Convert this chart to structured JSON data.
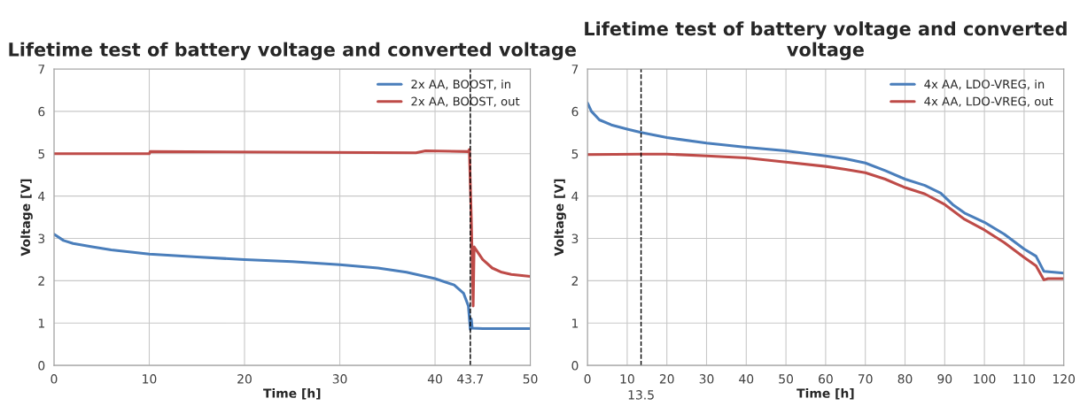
{
  "chart_data": [
    {
      "type": "line",
      "title": "Lifetime test of battery voltage and converted voltage",
      "xlabel": "Time [h]",
      "ylabel": "Voltage [V]",
      "xlim": [
        0,
        50
      ],
      "ylim": [
        0,
        7
      ],
      "xticks": [
        0,
        10,
        20,
        30,
        40,
        {
          "value": 43.7,
          "label": "43.7"
        },
        50
      ],
      "yticks": [
        0,
        1,
        2,
        3,
        4,
        5,
        6,
        7
      ],
      "grid": true,
      "legend": "top right",
      "ref_lines": [
        {
          "axis": "x",
          "value": 43.7,
          "label": null,
          "color": "#000000",
          "line_style": "dashed"
        }
      ],
      "series": [
        {
          "name": "2x AA, BOOST, in",
          "color": "#4a7ebb",
          "x": [
            0,
            1,
            2,
            4,
            6,
            10,
            15,
            20,
            25,
            30,
            34,
            37,
            40,
            42,
            43,
            43.5,
            43.7,
            43.8,
            43.9,
            45,
            50
          ],
          "values": [
            3.1,
            2.95,
            2.88,
            2.8,
            2.73,
            2.63,
            2.56,
            2.5,
            2.45,
            2.38,
            2.3,
            2.2,
            2.05,
            1.9,
            1.7,
            1.4,
            0.85,
            1.1,
            0.88,
            0.87,
            0.87
          ]
        },
        {
          "name": "2x AA, BOOST, out",
          "color": "#be4b48",
          "x": [
            0,
            10,
            10.1,
            38,
            39,
            43.5,
            43.6,
            43.8,
            44.0,
            44.1,
            45,
            46,
            47,
            48,
            50
          ],
          "values": [
            5.0,
            5.0,
            5.05,
            5.02,
            5.07,
            5.05,
            5.1,
            3.5,
            1.4,
            2.8,
            2.5,
            2.3,
            2.2,
            2.15,
            2.1
          ]
        }
      ]
    },
    {
      "type": "line",
      "title": "Lifetime test of battery voltage and converted voltage",
      "xlabel": "Time [h]",
      "ylabel": "Voltage [V]",
      "xlim": [
        0,
        120
      ],
      "ylim": [
        0,
        7
      ],
      "xticks": [
        0,
        10,
        20,
        30,
        40,
        50,
        60,
        70,
        80,
        90,
        100,
        110,
        120
      ],
      "yticks": [
        0,
        1,
        2,
        3,
        4,
        5,
        6,
        7
      ],
      "grid": true,
      "legend": "top right",
      "ref_lines": [
        {
          "axis": "x",
          "value": 13.5,
          "label": "13.5",
          "color": "#000000",
          "line_style": "dashed"
        }
      ],
      "series": [
        {
          "name": "4x AA, LDO-VREG, in",
          "color": "#4a7ebb",
          "x": [
            0,
            1,
            3,
            6,
            10,
            13.5,
            20,
            30,
            40,
            50,
            60,
            65,
            70,
            75,
            80,
            85,
            89,
            92,
            95,
            100,
            105,
            110,
            113,
            115,
            120
          ],
          "values": [
            6.2,
            6.0,
            5.8,
            5.68,
            5.58,
            5.5,
            5.38,
            5.25,
            5.15,
            5.07,
            4.95,
            4.88,
            4.78,
            4.6,
            4.4,
            4.25,
            4.07,
            3.8,
            3.6,
            3.38,
            3.1,
            2.75,
            2.58,
            2.22,
            2.18
          ]
        },
        {
          "name": "4x AA, LDO-VREG, out",
          "color": "#be4b48",
          "x": [
            0,
            13.5,
            20,
            30,
            40,
            50,
            60,
            65,
            70,
            75,
            80,
            85,
            90,
            95,
            100,
            105,
            110,
            113,
            115,
            116,
            120
          ],
          "values": [
            4.98,
            4.99,
            4.99,
            4.95,
            4.9,
            4.8,
            4.7,
            4.63,
            4.55,
            4.4,
            4.2,
            4.05,
            3.8,
            3.45,
            3.2,
            2.9,
            2.55,
            2.35,
            2.02,
            2.05,
            2.05
          ]
        }
      ]
    }
  ]
}
